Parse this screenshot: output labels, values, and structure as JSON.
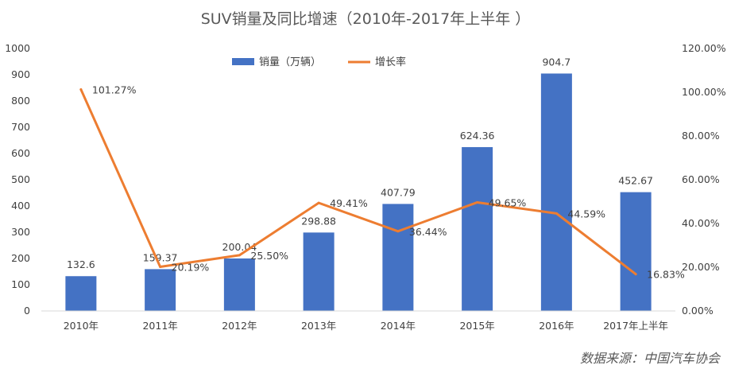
{
  "chart_data": {
    "type": "bar-line-combo",
    "title": "SUV销量及同比增速（2010年-2017年上半年 ）",
    "categories": [
      "2010年",
      "2011年",
      "2012年",
      "2013年",
      "2014年",
      "2015年",
      "2016年",
      "2017年上半年"
    ],
    "series": [
      {
        "name": "销量（万辆）",
        "type": "bar",
        "axis": "left",
        "color": "#4472C4",
        "values": [
          132.6,
          159.37,
          200.04,
          298.88,
          407.79,
          624.36,
          904.7,
          452.67
        ],
        "labels": [
          "132.6",
          "159.37",
          "200.04",
          "298.88",
          "407.79",
          "624.36",
          "904.7",
          "452.67"
        ]
      },
      {
        "name": "增长率",
        "type": "line",
        "axis": "right",
        "color": "#ED7D31",
        "values": [
          101.27,
          20.19,
          25.5,
          49.41,
          36.44,
          49.65,
          44.59,
          16.83
        ],
        "labels": [
          "101.27%",
          "20.19%",
          "25.50%",
          "49.41%",
          "36.44%",
          "49.65%",
          "44.59%",
          "16.83%"
        ]
      }
    ],
    "y_left": {
      "range": [
        0,
        1000
      ],
      "ticks": [
        0,
        100,
        200,
        300,
        400,
        500,
        600,
        700,
        800,
        900,
        1000
      ],
      "tick_labels": [
        "0",
        "100",
        "200",
        "300",
        "400",
        "500",
        "600",
        "700",
        "800",
        "900",
        "1000"
      ]
    },
    "y_right": {
      "range": [
        0,
        120
      ],
      "ticks": [
        0,
        20,
        40,
        60,
        80,
        100,
        120
      ],
      "tick_labels": [
        "0.00%",
        "20.00%",
        "40.00%",
        "60.00%",
        "80.00%",
        "100.00%",
        "120.00%"
      ]
    },
    "grid": false,
    "legend": {
      "position": "top-center",
      "entries": [
        "销量（万辆）",
        "增长率"
      ]
    },
    "source": "数据来源：中国汽车协会"
  }
}
